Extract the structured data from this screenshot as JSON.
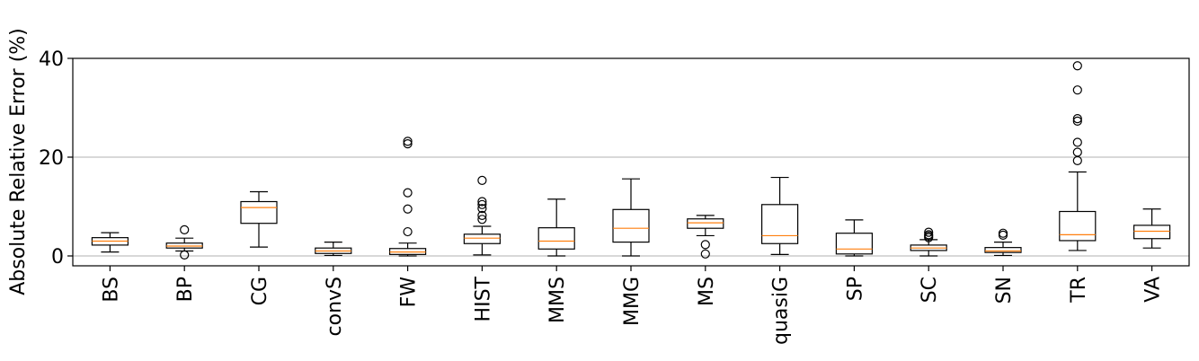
{
  "chart_data": {
    "type": "box",
    "ylabel": "Absolute Relative Error (%)",
    "xlabel": "",
    "ylim": [
      -2,
      40
    ],
    "yticks": [
      0,
      20,
      40
    ],
    "grid": "horizontal",
    "categories": [
      "BS",
      "BP",
      "CG",
      "convS",
      "FW",
      "HIST",
      "MMS",
      "MMG",
      "MS",
      "quasiG",
      "SP",
      "SC",
      "SN",
      "TR",
      "VA"
    ],
    "boxes": [
      {
        "whisker_low": 0.8,
        "q1": 2.2,
        "median": 3.0,
        "q3": 3.7,
        "whisker_high": 4.7,
        "outliers": []
      },
      {
        "whisker_low": 1.0,
        "q1": 1.6,
        "median": 2.0,
        "q3": 2.6,
        "whisker_high": 3.6,
        "outliers": [
          5.3,
          0.2
        ]
      },
      {
        "whisker_low": 1.8,
        "q1": 6.6,
        "median": 9.8,
        "q3": 11.0,
        "whisker_high": 13.0,
        "outliers": []
      },
      {
        "whisker_low": 0.1,
        "q1": 0.5,
        "median": 1.0,
        "q3": 1.6,
        "whisker_high": 2.8,
        "outliers": []
      },
      {
        "whisker_low": 0.0,
        "q1": 0.3,
        "median": 0.8,
        "q3": 1.5,
        "whisker_high": 2.6,
        "outliers": [
          23.2,
          22.7,
          12.8,
          9.5,
          4.9
        ]
      },
      {
        "whisker_low": 0.2,
        "q1": 2.5,
        "median": 3.6,
        "q3": 4.4,
        "whisker_high": 6.0,
        "outliers": [
          15.3,
          11.0,
          10.4,
          9.6,
          8.2,
          7.4
        ]
      },
      {
        "whisker_low": 0.0,
        "q1": 1.4,
        "median": 3.0,
        "q3": 5.7,
        "whisker_high": 11.5,
        "outliers": []
      },
      {
        "whisker_low": 0.0,
        "q1": 2.8,
        "median": 5.6,
        "q3": 9.4,
        "whisker_high": 15.6,
        "outliers": []
      },
      {
        "whisker_low": 4.1,
        "q1": 5.6,
        "median": 6.7,
        "q3": 7.5,
        "whisker_high": 8.2,
        "outliers": [
          2.3,
          0.4
        ]
      },
      {
        "whisker_low": 0.3,
        "q1": 2.5,
        "median": 4.1,
        "q3": 10.4,
        "whisker_high": 15.9,
        "outliers": []
      },
      {
        "whisker_low": 0.0,
        "q1": 0.4,
        "median": 1.4,
        "q3": 4.6,
        "whisker_high": 7.3,
        "outliers": []
      },
      {
        "whisker_low": 0.0,
        "q1": 1.1,
        "median": 1.6,
        "q3": 2.2,
        "whisker_high": 3.3,
        "outliers": [
          4.8,
          4.3,
          4.0,
          3.7
        ]
      },
      {
        "whisker_low": 0.1,
        "q1": 0.7,
        "median": 1.0,
        "q3": 1.7,
        "whisker_high": 2.8,
        "outliers": [
          4.6,
          4.2
        ]
      },
      {
        "whisker_low": 1.1,
        "q1": 3.1,
        "median": 4.3,
        "q3": 9.0,
        "whisker_high": 17.0,
        "outliers": [
          38.5,
          33.6,
          27.8,
          27.3,
          23.0,
          21.0,
          19.3
        ]
      },
      {
        "whisker_low": 1.6,
        "q1": 3.5,
        "median": 5.0,
        "q3": 6.2,
        "whisker_high": 9.5,
        "outliers": []
      }
    ],
    "colors": {
      "box": "#000000",
      "median": "#ff7f0e",
      "grid": "#b0b0b0",
      "frame": "#000000"
    }
  }
}
